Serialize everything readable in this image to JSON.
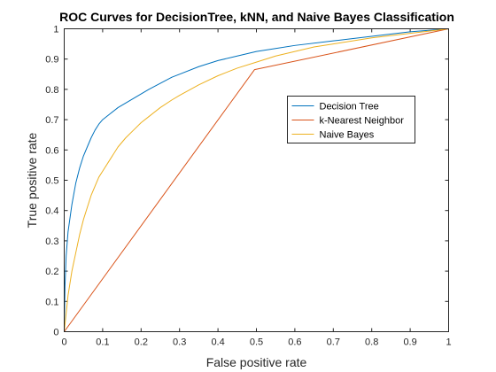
{
  "chart_data": {
    "type": "line",
    "title": "ROC Curves for DecisionTree, kNN, and Naive Bayes Classification",
    "xlabel": "False positive rate",
    "ylabel": "True positive rate",
    "xlim": [
      0,
      1
    ],
    "ylim": [
      0,
      1
    ],
    "xticks": [
      "0",
      "0.1",
      "0.2",
      "0.3",
      "0.4",
      "0.5",
      "0.6",
      "0.7",
      "0.8",
      "0.9",
      "1"
    ],
    "yticks": [
      "0",
      "0.1",
      "0.2",
      "0.3",
      "0.4",
      "0.5",
      "0.6",
      "0.7",
      "0.8",
      "0.9",
      "1"
    ],
    "grid": false,
    "legend_position": "right",
    "series": [
      {
        "name": "Decision Tree",
        "color": "#0072BD",
        "x": [
          0,
          0.002,
          0.005,
          0.01,
          0.02,
          0.03,
          0.04,
          0.05,
          0.06,
          0.07,
          0.08,
          0.09,
          0.1,
          0.12,
          0.14,
          0.16,
          0.18,
          0.2,
          0.22,
          0.25,
          0.28,
          0.3,
          0.35,
          0.4,
          0.45,
          0.5,
          0.55,
          0.6,
          0.7,
          0.8,
          0.9,
          1.0
        ],
        "y": [
          0,
          0.15,
          0.25,
          0.33,
          0.42,
          0.49,
          0.54,
          0.58,
          0.61,
          0.64,
          0.665,
          0.685,
          0.7,
          0.72,
          0.74,
          0.755,
          0.77,
          0.785,
          0.8,
          0.82,
          0.84,
          0.85,
          0.875,
          0.895,
          0.91,
          0.925,
          0.935,
          0.945,
          0.96,
          0.975,
          0.99,
          1.0
        ]
      },
      {
        "name": "k-Nearest Neighbor",
        "color": "#D95319",
        "x": [
          0,
          0.495,
          1.0
        ],
        "y": [
          0,
          0.865,
          1.0
        ]
      },
      {
        "name": "Naive Bayes",
        "color": "#EDB120",
        "x": [
          0,
          0.005,
          0.01,
          0.02,
          0.03,
          0.04,
          0.05,
          0.06,
          0.07,
          0.08,
          0.09,
          0.1,
          0.12,
          0.14,
          0.16,
          0.18,
          0.2,
          0.22,
          0.25,
          0.28,
          0.3,
          0.35,
          0.4,
          0.45,
          0.5,
          0.55,
          0.6,
          0.65,
          0.7,
          0.8,
          0.9,
          1.0
        ],
        "y": [
          0,
          0.06,
          0.12,
          0.2,
          0.26,
          0.32,
          0.37,
          0.41,
          0.45,
          0.48,
          0.51,
          0.53,
          0.57,
          0.61,
          0.64,
          0.665,
          0.69,
          0.71,
          0.74,
          0.765,
          0.78,
          0.815,
          0.845,
          0.87,
          0.89,
          0.91,
          0.925,
          0.94,
          0.95,
          0.97,
          0.985,
          1.0
        ]
      }
    ]
  }
}
